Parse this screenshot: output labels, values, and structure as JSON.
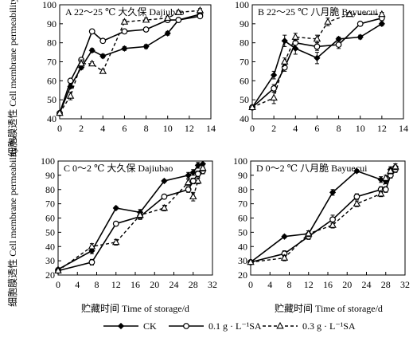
{
  "figure": {
    "ylabel_upper": "细胞膜透性 Cell membrane permeability/%",
    "ylabel_lower": "细胞膜透性 Cell membrane permeability/%",
    "xlabel_left": "贮藏时间 Time of storage/d",
    "xlabel_right": "贮藏时间 Time of storage/d",
    "legend": [
      {
        "label": "CK",
        "marker": "diamond-filled",
        "line": "solid"
      },
      {
        "label": "0.1 g · L⁻¹SA",
        "marker": "circle-open",
        "line": "solid"
      },
      {
        "label": "0.3 g · L⁻¹SA",
        "marker": "triangle-open",
        "line": "dashed"
      }
    ],
    "colors": {
      "line": "#000000",
      "background": "#ffffff"
    }
  },
  "chart_data": [
    {
      "type": "line",
      "title": "A 22～25 ℃ 大久保 Dajiubao",
      "xlim": [
        0,
        14
      ],
      "ylim": [
        40,
        100
      ],
      "xticks": [
        0,
        2,
        4,
        6,
        8,
        10,
        12,
        14
      ],
      "yticks": [
        40,
        50,
        60,
        70,
        80,
        90,
        100
      ],
      "series": [
        {
          "name": "CK",
          "x": [
            0,
            1,
            2,
            3,
            4,
            6,
            8,
            10,
            11,
            13
          ],
          "y": [
            43,
            57,
            67,
            76,
            73,
            77,
            78,
            85,
            92,
            95
          ],
          "err": [
            1,
            1,
            1,
            1,
            1,
            1,
            1,
            1,
            1,
            1
          ]
        },
        {
          "name": "0.1 g · L⁻¹SA",
          "x": [
            0,
            1,
            2,
            3,
            4,
            6,
            8,
            10,
            11,
            13
          ],
          "y": [
            43,
            60,
            71,
            86,
            81,
            86,
            87,
            92,
            92,
            94
          ],
          "err": [
            1,
            1,
            1,
            1,
            1,
            1,
            1,
            1,
            1,
            1
          ]
        },
        {
          "name": "0.3 g · L⁻¹SA",
          "x": [
            0,
            1,
            2,
            3,
            4,
            6,
            8,
            10,
            11,
            13
          ],
          "y": [
            43,
            52,
            69,
            69,
            65,
            91,
            92,
            93,
            96,
            97
          ],
          "err": [
            1,
            2,
            2,
            1,
            1,
            1,
            1,
            1,
            1,
            1
          ]
        }
      ]
    },
    {
      "type": "line",
      "title": "B 22～25 ℃ 八月脆 Bayuecui",
      "xlim": [
        0,
        14
      ],
      "ylim": [
        40,
        100
      ],
      "xticks": [
        0,
        2,
        4,
        6,
        8,
        10,
        12,
        14
      ],
      "yticks": [
        40,
        50,
        60,
        70,
        80,
        90,
        100
      ],
      "series": [
        {
          "name": "CK",
          "x": [
            0,
            2,
            3,
            4,
            6,
            8,
            10,
            12
          ],
          "y": [
            46,
            63,
            81,
            77,
            72,
            82,
            83,
            90
          ],
          "err": [
            1,
            2,
            3,
            3,
            3,
            1,
            1,
            1
          ]
        },
        {
          "name": "0.1 g · L⁻¹SA",
          "x": [
            0,
            2,
            3,
            4,
            6,
            8,
            10,
            12
          ],
          "y": [
            46,
            56,
            67,
            80,
            78,
            79,
            90,
            93
          ],
          "err": [
            1,
            2,
            2,
            3,
            2,
            2,
            1,
            1
          ]
        },
        {
          "name": "0.3 g · L⁻¹SA",
          "x": [
            0,
            2,
            3,
            4,
            6,
            7,
            9,
            12
          ],
          "y": [
            46,
            51,
            70,
            83,
            82,
            91,
            95,
            95
          ],
          "err": [
            1,
            3,
            2,
            2,
            2,
            2,
            1,
            1
          ]
        }
      ]
    },
    {
      "type": "line",
      "title": "C 0～2 ℃ 大久保 Dajiubao",
      "xlim": [
        0,
        32
      ],
      "ylim": [
        20,
        100
      ],
      "xticks": [
        0,
        4,
        8,
        12,
        16,
        20,
        24,
        28,
        32
      ],
      "yticks": [
        20,
        30,
        40,
        50,
        60,
        70,
        80,
        90,
        100
      ],
      "series": [
        {
          "name": "CK",
          "x": [
            0,
            7,
            12,
            17,
            22,
            27,
            28,
            29,
            30
          ],
          "y": [
            24,
            37,
            67,
            64,
            86,
            90,
            92,
            97,
            98
          ],
          "err": [
            1,
            2,
            1,
            2,
            1,
            2,
            2,
            2,
            2
          ]
        },
        {
          "name": "0.1 g · L⁻¹SA",
          "x": [
            0,
            7,
            12,
            17,
            22,
            27,
            28,
            29,
            30
          ],
          "y": [
            23,
            29,
            56,
            61,
            75,
            80,
            86,
            91,
            93
          ],
          "err": [
            1,
            2,
            1,
            2,
            1,
            2,
            2,
            2,
            2
          ]
        },
        {
          "name": "0.3 g · L⁻¹SA",
          "x": [
            0,
            7,
            12,
            17,
            22,
            27,
            28,
            29,
            30
          ],
          "y": [
            23,
            40,
            43,
            62,
            67,
            85,
            75,
            86,
            95
          ],
          "err": [
            1,
            2,
            2,
            2,
            2,
            2,
            3,
            2,
            2
          ]
        }
      ]
    },
    {
      "type": "line",
      "title": "D 0～2 ℃ 八月脆 Bayuecui",
      "xlim": [
        0,
        32
      ],
      "ylim": [
        20,
        100
      ],
      "xticks": [
        0,
        4,
        8,
        12,
        16,
        20,
        24,
        28,
        32
      ],
      "yticks": [
        20,
        30,
        40,
        50,
        60,
        70,
        80,
        90,
        100
      ],
      "series": [
        {
          "name": "CK",
          "x": [
            0,
            7,
            12,
            17,
            22,
            27,
            28,
            29,
            30
          ],
          "y": [
            29,
            47,
            49,
            78,
            93,
            87,
            86,
            94,
            96
          ],
          "err": [
            1,
            1,
            2,
            2,
            1,
            2,
            2,
            2,
            2
          ]
        },
        {
          "name": "0.1 g · L⁻¹SA",
          "x": [
            0,
            7,
            12,
            17,
            22,
            27,
            28,
            29,
            30
          ],
          "y": [
            29,
            35,
            47,
            59,
            75,
            80,
            80,
            90,
            94
          ],
          "err": [
            1,
            2,
            2,
            3,
            2,
            2,
            2,
            2,
            2
          ]
        },
        {
          "name": "0.3 g · L⁻¹SA",
          "x": [
            0,
            7,
            12,
            17,
            22,
            27,
            28,
            29,
            30
          ],
          "y": [
            29,
            32,
            49,
            55,
            70,
            77,
            88,
            93,
            96
          ],
          "err": [
            1,
            2,
            2,
            2,
            2,
            2,
            2,
            2,
            2
          ]
        }
      ]
    }
  ]
}
